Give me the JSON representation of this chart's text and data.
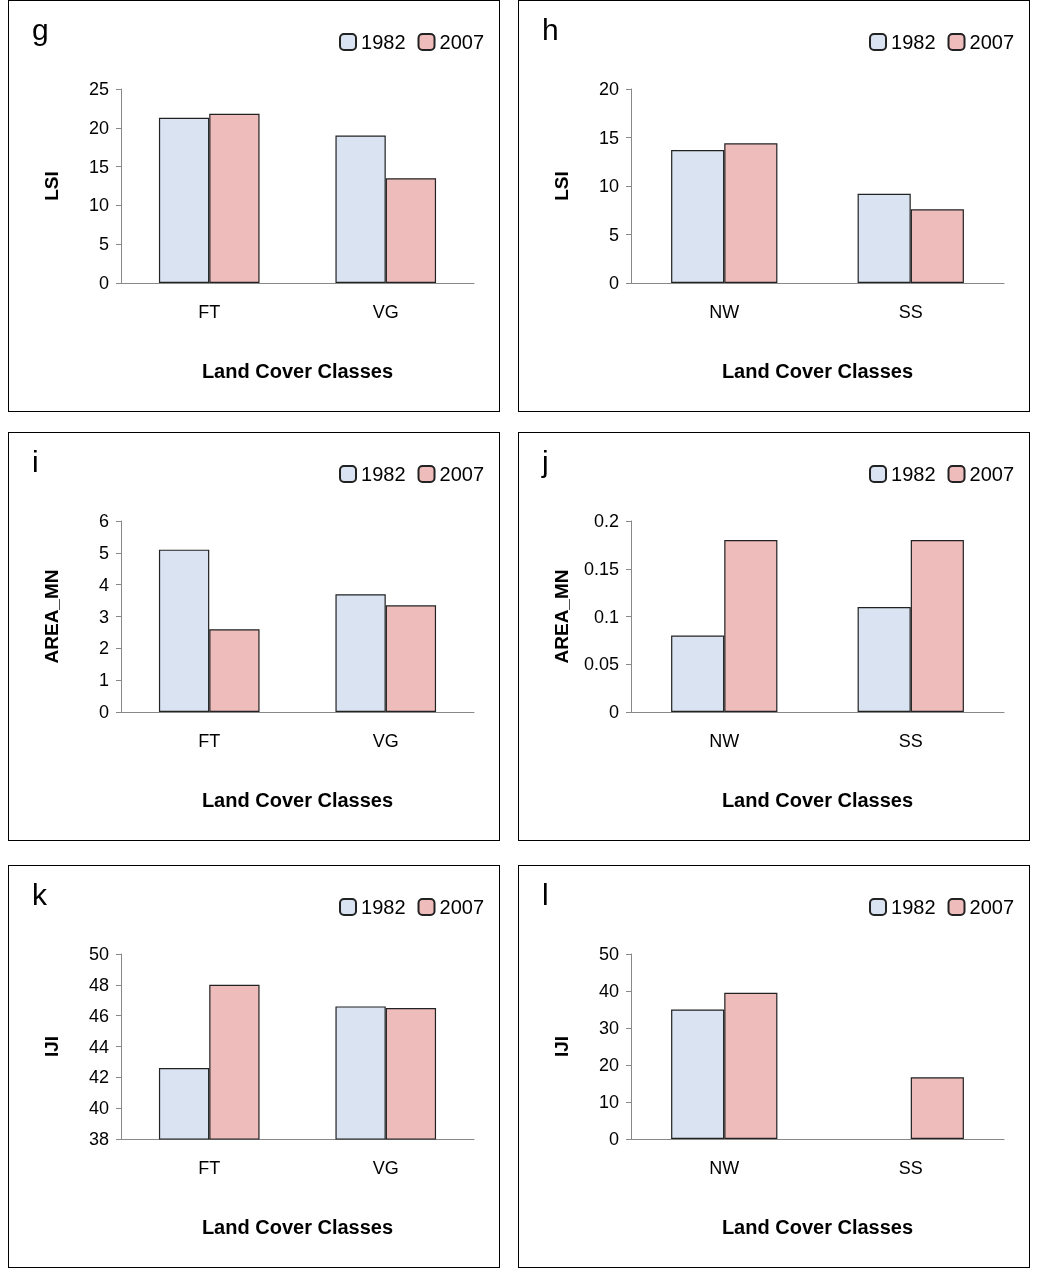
{
  "chart_data": [
    {
      "type": "bar",
      "title": "g",
      "xlabel": "Land Cover Classes",
      "ylabel": "LSI",
      "categories": [
        "FT",
        "VG"
      ],
      "legend": "top right",
      "ylim": [
        0,
        25
      ],
      "yticks": [
        0,
        5,
        10,
        15,
        20,
        25
      ],
      "series": [
        {
          "name": "1982",
          "color": "#d9e3f1",
          "values": [
            21.3,
            19.0
          ]
        },
        {
          "name": "2007",
          "color": "#efbcbc",
          "values": [
            21.8,
            13.5
          ]
        }
      ]
    },
    {
      "type": "bar",
      "title": "h",
      "xlabel": "Land Cover Classes",
      "ylabel": "LSI",
      "categories": [
        "NW",
        "SS"
      ],
      "legend": "top right",
      "ylim": [
        0,
        20
      ],
      "yticks": [
        0,
        5,
        10,
        15,
        20
      ],
      "series": [
        {
          "name": "1982",
          "color": "#d9e3f1",
          "values": [
            13.7,
            9.2
          ]
        },
        {
          "name": "2007",
          "color": "#efbcbc",
          "values": [
            14.4,
            7.6
          ]
        }
      ]
    },
    {
      "type": "bar",
      "title": "i",
      "xlabel": "Land Cover Classes",
      "ylabel": "AREA_MN",
      "categories": [
        "FT",
        "VG"
      ],
      "legend": "top right",
      "ylim": [
        0,
        6
      ],
      "yticks": [
        0,
        1,
        2,
        3,
        4,
        5,
        6
      ],
      "series": [
        {
          "name": "1982",
          "color": "#d9e3f1",
          "values": [
            5.1,
            3.7
          ]
        },
        {
          "name": "2007",
          "color": "#efbcbc",
          "values": [
            2.6,
            3.35
          ]
        }
      ]
    },
    {
      "type": "bar",
      "title": "j",
      "xlabel": "Land Cover Classes",
      "ylabel": "AREA_MN",
      "categories": [
        "NW",
        "SS"
      ],
      "legend": "top right",
      "ylim": [
        0,
        0.2
      ],
      "yticks": [
        0,
        0.05,
        0.1,
        0.15,
        0.2
      ],
      "series": [
        {
          "name": "1982",
          "color": "#d9e3f1",
          "values": [
            0.08,
            0.11
          ]
        },
        {
          "name": "2007",
          "color": "#efbcbc",
          "values": [
            0.18,
            0.18
          ]
        }
      ]
    },
    {
      "type": "bar",
      "title": "k",
      "xlabel": "Land Cover Classes",
      "ylabel": "IJI",
      "categories": [
        "FT",
        "VG"
      ],
      "legend": "top right",
      "ylim": [
        38,
        50
      ],
      "yticks": [
        38,
        40,
        42,
        44,
        46,
        48,
        50
      ],
      "series": [
        {
          "name": "1982",
          "color": "#d9e3f1",
          "values": [
            42.6,
            46.6
          ]
        },
        {
          "name": "2007",
          "color": "#efbcbc",
          "values": [
            48.0,
            46.5
          ]
        }
      ]
    },
    {
      "type": "bar",
      "title": "l",
      "xlabel": "Land Cover Classes",
      "ylabel": "IJI",
      "categories": [
        "NW",
        "SS"
      ],
      "legend": "top right",
      "ylim": [
        0,
        50
      ],
      "yticks": [
        0,
        10,
        20,
        30,
        40,
        50
      ],
      "series": [
        {
          "name": "1982",
          "color": "#d9e3f1",
          "values": [
            35,
            null
          ]
        },
        {
          "name": "2007",
          "color": "#efbcbc",
          "values": [
            39.5,
            16.7
          ]
        }
      ]
    }
  ]
}
